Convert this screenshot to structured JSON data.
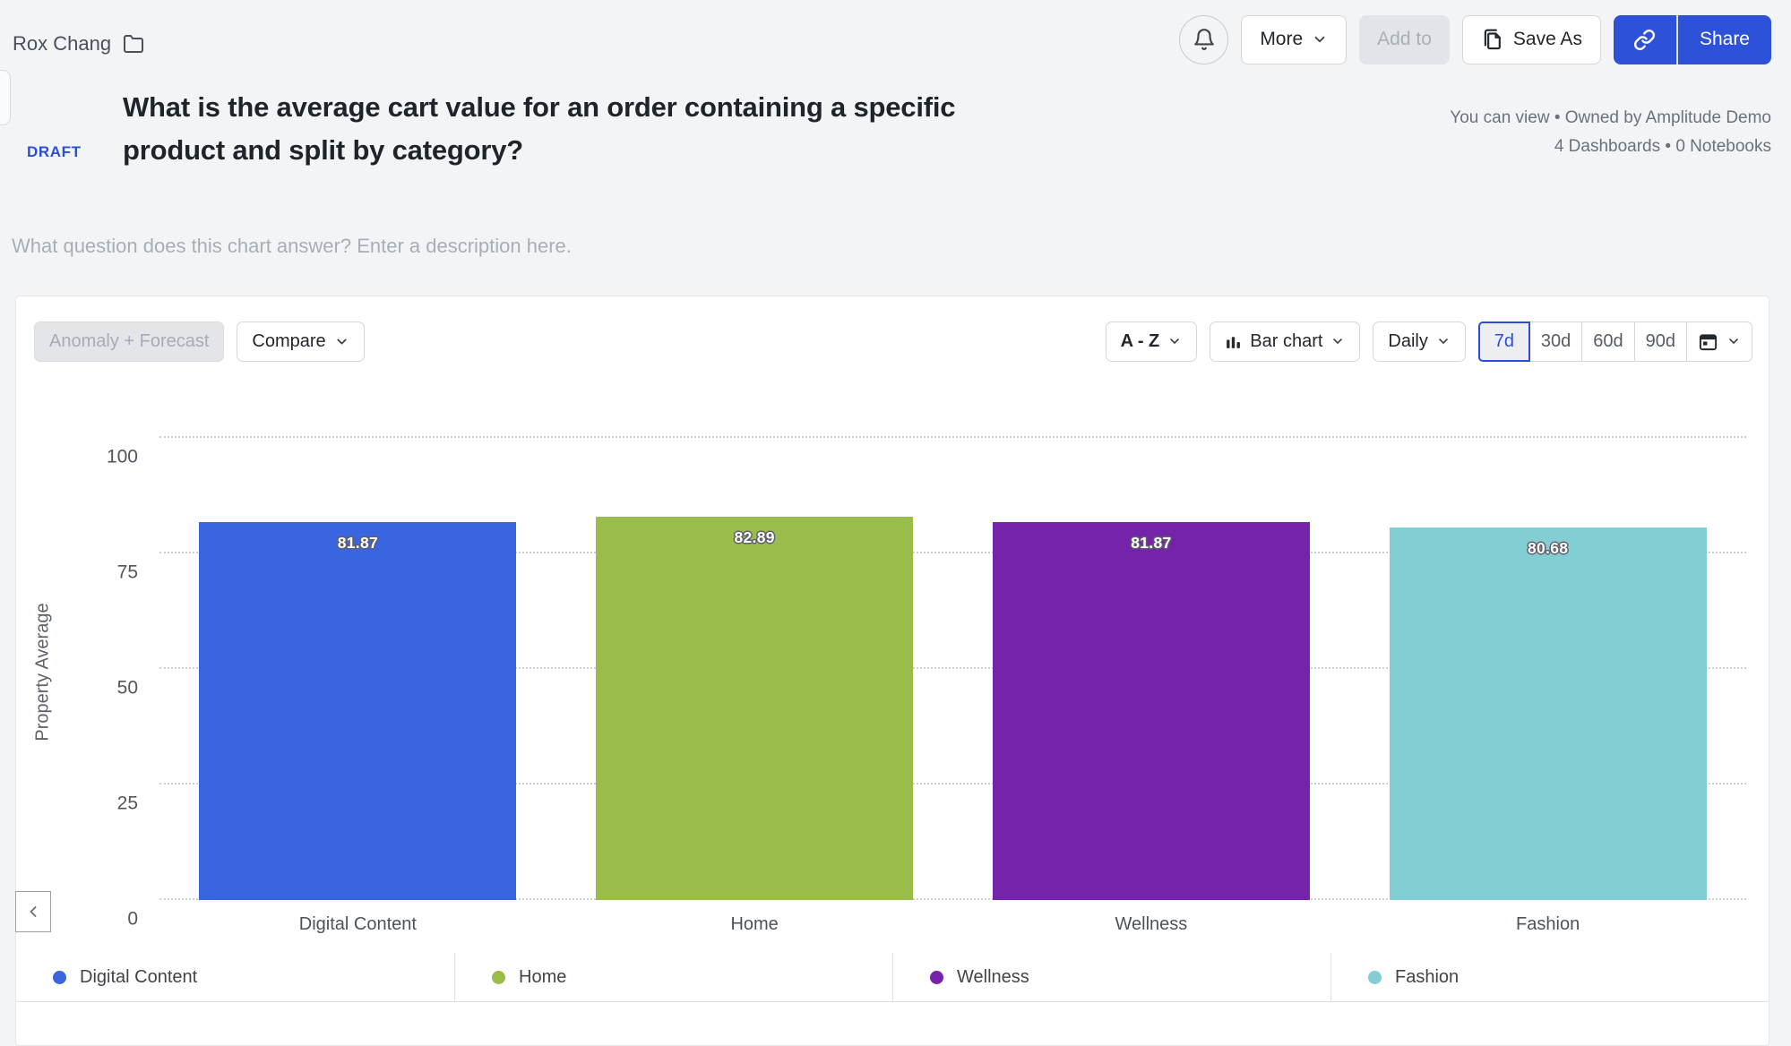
{
  "topbar": {
    "owner": "Rox Chang",
    "more_label": "More",
    "add_to_label": "Add to",
    "save_as_label": "Save As",
    "share_label": "Share"
  },
  "header": {
    "draft_badge": "DRAFT",
    "title": "What is the average cart value for an order containing a specific product and split by category?",
    "permission_info": "You can view • Owned by Amplitude Demo",
    "usage_info": "4 Dashboards • 0 Notebooks",
    "description_placeholder": "What question does this chart answer? Enter a description here."
  },
  "controls": {
    "anomaly_forecast_label": "Anomaly + Forecast",
    "compare_label": "Compare",
    "sort_label": "A - Z",
    "chart_type_label": "Bar chart",
    "interval_label": "Daily",
    "ranges": [
      "7d",
      "30d",
      "60d",
      "90d"
    ],
    "selected_range": "7d"
  },
  "chart_data": {
    "type": "bar",
    "categories": [
      "Digital Content",
      "Home",
      "Wellness",
      "Fashion"
    ],
    "values": [
      81.87,
      82.89,
      81.87,
      80.68
    ],
    "colors": [
      "#3A65E0",
      "#99BC4B",
      "#7524A9",
      "#82CED2"
    ],
    "ylabel": "Property Average",
    "yticks": [
      0,
      25,
      50,
      75,
      100
    ],
    "ylim": [
      0,
      100
    ],
    "grid": "dotted-horizontal",
    "legend_position": "bottom",
    "legend": [
      "Digital Content",
      "Home",
      "Wellness",
      "Fashion"
    ]
  }
}
